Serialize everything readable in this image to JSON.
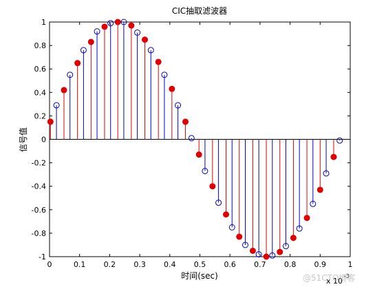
{
  "chart_data": {
    "type": "stem",
    "title": "CIC抽取滤波器",
    "xlabel": "时间(sec)",
    "ylabel": "信号值",
    "x_exponent": {
      "base": "x 10",
      "power": "-3"
    },
    "watermark": "@51CTO博客",
    "xlim": [
      0,
      1
    ],
    "ylim": [
      -1,
      1
    ],
    "xticks": [
      0,
      0.1,
      0.2,
      0.3,
      0.4,
      0.5,
      0.6,
      0.7,
      0.8,
      0.9,
      1
    ],
    "yticks": [
      -1,
      -0.8,
      -0.6,
      -0.4,
      -0.2,
      0,
      0.2,
      0.4,
      0.6,
      0.8,
      1
    ],
    "series": [
      {
        "color": "#0000cc",
        "filled": false,
        "x": [
          0.023,
          0.068,
          0.113,
          0.158,
          0.203,
          0.247,
          0.292,
          0.337,
          0.382,
          0.427,
          0.472,
          0.517,
          0.562,
          0.607,
          0.651,
          0.696,
          0.741,
          0.786,
          0.831,
          0.876,
          0.92,
          0.965
        ],
        "values": [
          0.29,
          0.55,
          0.76,
          0.92,
          0.99,
          1.0,
          0.91,
          0.76,
          0.55,
          0.29,
          0.01,
          -0.27,
          -0.54,
          -0.75,
          -0.9,
          -0.98,
          -0.99,
          -0.91,
          -0.76,
          -0.55,
          -0.29,
          -0.01
        ]
      },
      {
        "color": "#e00000",
        "filled": true,
        "x": [
          0.003,
          0.048,
          0.093,
          0.138,
          0.183,
          0.227,
          0.272,
          0.317,
          0.362,
          0.407,
          0.452,
          0.497,
          0.542,
          0.587,
          0.631,
          0.676,
          0.721,
          0.766,
          0.811,
          0.856,
          0.9,
          0.945
        ],
        "values": [
          0.15,
          0.42,
          0.65,
          0.83,
          0.96,
          1.0,
          0.97,
          0.85,
          0.66,
          0.43,
          0.15,
          -0.13,
          -0.4,
          -0.64,
          -0.83,
          -0.95,
          -1.0,
          -0.96,
          -0.84,
          -0.67,
          -0.43,
          -0.15
        ]
      }
    ]
  }
}
